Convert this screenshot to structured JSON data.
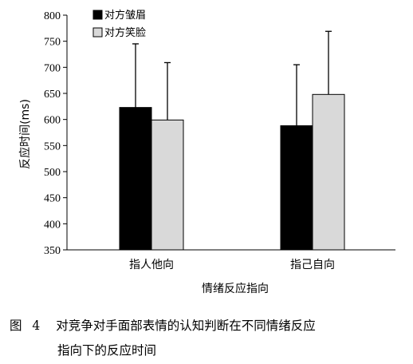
{
  "chart_data": {
    "type": "bar",
    "categories": [
      "指人他向",
      "指己自向"
    ],
    "series": [
      {
        "name": "对方皱眉",
        "values": [
          623,
          588
        ],
        "errors": [
          122,
          117
        ],
        "color": "#000000"
      },
      {
        "name": "对方笑脸",
        "values": [
          599,
          648
        ],
        "errors": [
          110,
          121
        ],
        "color": "#d9d9d9"
      }
    ],
    "xlabel": "情绪反应指向",
    "ylabel": "反应时间(ms)",
    "ylim": [
      350,
      800
    ],
    "yticks": [
      350,
      400,
      450,
      500,
      550,
      600,
      650,
      700,
      750,
      800
    ],
    "legend_position": "top-left",
    "grid": false
  },
  "caption": {
    "label": "图 4",
    "line1": "对竞争对手面部表情的认知判断在不同情绪反应",
    "line2": "指向下的反应时间"
  }
}
